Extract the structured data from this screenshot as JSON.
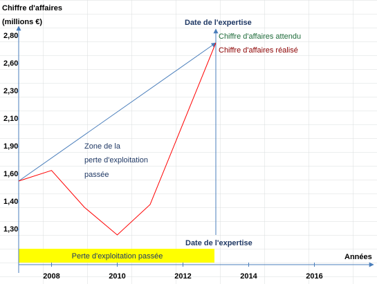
{
  "chart_data": {
    "type": "line",
    "title": "Chiffre d'affaires",
    "y_label": "(millions €)",
    "x_label": "Années",
    "xlim": [
      2007,
      2017.8
    ],
    "xticks": [
      2008,
      2010,
      2012,
      2014,
      2016
    ],
    "yticks": [
      {
        "value": 2.8,
        "label": "2,80"
      },
      {
        "value": 2.6,
        "label": "2,60"
      },
      {
        "value": 2.3,
        "label": "2,30"
      },
      {
        "value": 2.1,
        "label": "2,10"
      },
      {
        "value": 1.9,
        "label": "1,90"
      },
      {
        "value": 1.6,
        "label": "1,60"
      },
      {
        "value": 1.4,
        "label": "1,40"
      },
      {
        "value": 1.3,
        "label": "1,30"
      }
    ],
    "series": [
      {
        "name": "Chiffre d'affaires attendu",
        "color": "#4a7ebb",
        "x": [
          2007,
          2013
        ],
        "values": [
          1.55,
          2.75
        ]
      },
      {
        "name": "Chiffre d'affaires  réalisé",
        "color": "#ff0000",
        "x": [
          2007,
          2008,
          2009,
          2010,
          2011,
          2013
        ],
        "values": [
          1.55,
          1.64,
          1.38,
          1.28,
          1.39,
          2.75
        ]
      }
    ],
    "expertise": {
      "x": 2013,
      "label_top": "Date de l'expertise",
      "label_bottom": "Date de l'expertise"
    },
    "zone_text": [
      "Zone de la",
      "perte d'exploitation",
      "passée"
    ],
    "loss_bar": {
      "x": [
        2007,
        2013
      ],
      "label": "Perte d'exploitation passée",
      "color": "#ffff00"
    }
  }
}
